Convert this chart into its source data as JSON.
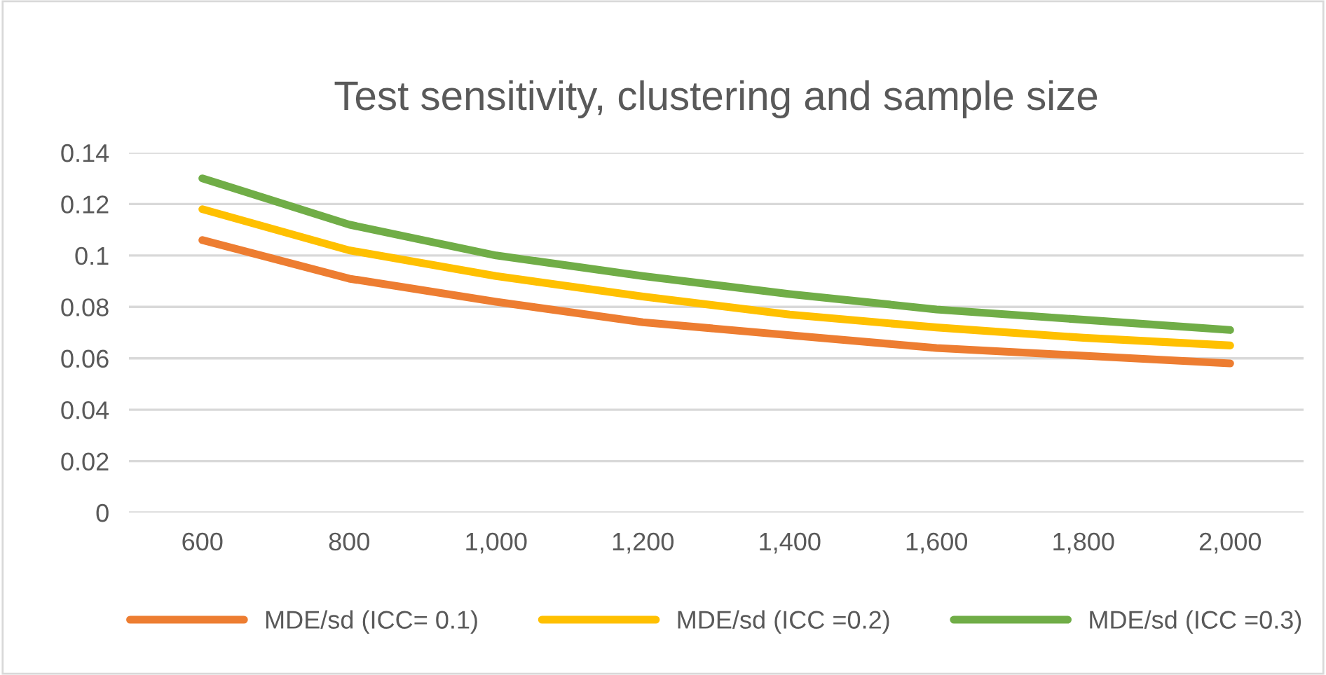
{
  "chart_data": {
    "type": "line",
    "title": "Test sensitivity, clustering and sample size",
    "categories": [
      "600",
      "800",
      "1,000",
      "1,200",
      "1,400",
      "1,600",
      "1,800",
      "2,000"
    ],
    "series": [
      {
        "name": "MDE/sd (ICC= 0.1)",
        "color": "#ed7d31",
        "values": [
          0.106,
          0.091,
          0.082,
          0.074,
          0.069,
          0.064,
          0.061,
          0.058
        ]
      },
      {
        "name": "MDE/sd (ICC =0.2)",
        "color": "#ffc000",
        "values": [
          0.118,
          0.102,
          0.092,
          0.084,
          0.077,
          0.072,
          0.068,
          0.065
        ]
      },
      {
        "name": "MDE/sd (ICC =0.3)",
        "color": "#70ad47",
        "values": [
          0.13,
          0.112,
          0.1,
          0.092,
          0.085,
          0.079,
          0.075,
          0.071
        ]
      }
    ],
    "ylim": [
      0,
      0.14
    ],
    "yticks": [
      0,
      0.02,
      0.04,
      0.06,
      0.08,
      0.1,
      0.12,
      0.14
    ],
    "grid": "y",
    "legend": "bottom",
    "marker": "none",
    "line_style": "solid"
  }
}
